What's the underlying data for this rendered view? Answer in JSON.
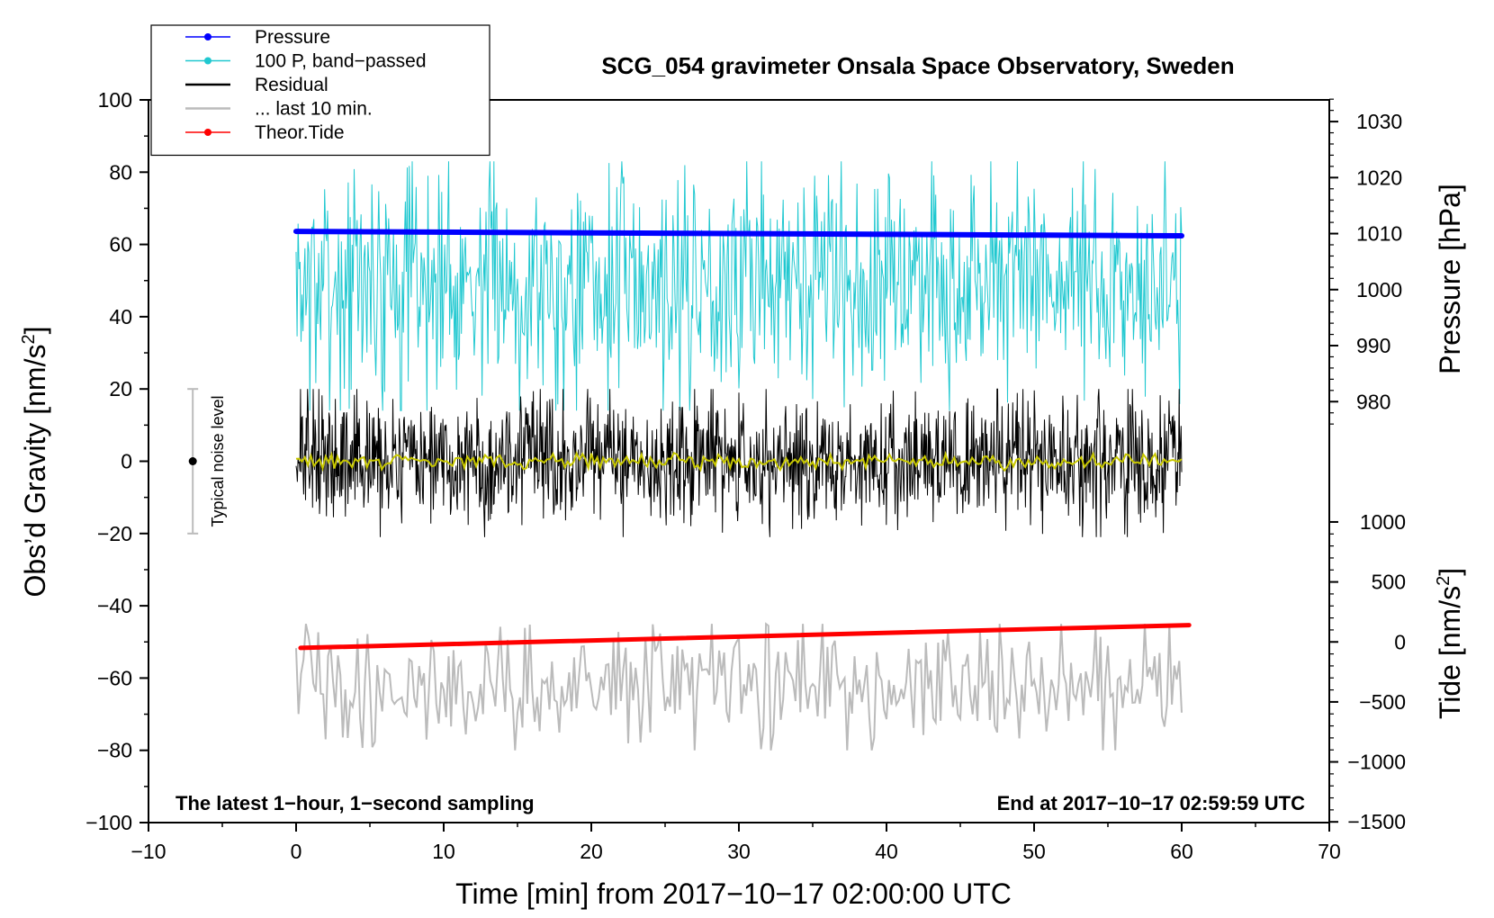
{
  "chart_data": {
    "type": "line",
    "title": "SCG_054 gravimeter Onsala Space Observatory, Sweden",
    "xlabel": "Time [min] from 2017−10−17 02:00:00 UTC",
    "ylabel": "Obs’d Gravity [nm/s",
    "ylabel_sup": "2",
    "ylabel_close": "]",
    "xlim": [
      -10,
      70
    ],
    "ylim": [
      -100,
      100
    ],
    "x_ticks": [
      -10,
      0,
      10,
      20,
      30,
      40,
      50,
      60,
      70
    ],
    "x_tick_labels": [
      "−10",
      "0",
      "10",
      "20",
      "30",
      "40",
      "50",
      "60",
      "70"
    ],
    "y_ticks": [
      -100,
      -80,
      -60,
      -40,
      -20,
      0,
      20,
      40,
      60,
      80,
      100
    ],
    "y_tick_labels": [
      "−100",
      "−80",
      "−60",
      "−40",
      "−20",
      "0",
      "20",
      "40",
      "60",
      "80",
      "100"
    ],
    "pressure_axis": {
      "label": "Pressure [hPa]",
      "ticks": [
        980,
        990,
        1000,
        1010,
        1020,
        1030
      ],
      "tick_labels": [
        "980",
        "990",
        "1000",
        "1010",
        "1020",
        "1030"
      ],
      "mapping_note": "1010 hPa at 63 nm/s^2, 10 hPa per 15.5 nm/s^2"
    },
    "tide_axis": {
      "label": "Tide [nm/s",
      "label_sup": "2",
      "label_close": "]",
      "ticks": [
        -1500,
        -1000,
        -500,
        0,
        500,
        1000
      ],
      "tick_labels": [
        "−1500",
        "−1000",
        "−500",
        "0",
        "500",
        "1000"
      ],
      "mapping_note": "0 nm/s^2 at -50, 500 nm/s^2 per 16.6 units"
    },
    "legend": {
      "location": "top-left",
      "entries": [
        {
          "label": "Pressure",
          "color": "#0000ff",
          "style": "line-dot"
        },
        {
          "label": "100 P, band−passed",
          "color": "#20c8d0",
          "style": "line-dot"
        },
        {
          "label": "Residual",
          "color": "#000000",
          "style": "line"
        },
        {
          "label": "... last 10 min.",
          "color": "#bbbbbb",
          "style": "line"
        },
        {
          "label": "Theor.Tide",
          "color": "#ff0000",
          "style": "line-dot"
        }
      ]
    },
    "series": [
      {
        "name": "Pressure",
        "color": "#0000ff",
        "axis": "pressure",
        "x_range": [
          0,
          60
        ],
        "start_value": 1010.4,
        "end_value": 1009.6,
        "unit": "hPa"
      },
      {
        "name": "100 P, band−passed",
        "color": "#20c8d0",
        "axis": "gravity",
        "x_range": [
          0,
          60
        ],
        "center": 50,
        "spread": 15,
        "min": 14,
        "max": 83
      },
      {
        "name": "Residual",
        "color": "#000000",
        "axis": "gravity",
        "x_range": [
          0,
          60
        ],
        "center": 0,
        "spread": 8,
        "min": -21,
        "max": 20
      },
      {
        "name": "Residual (smoothed)",
        "color": "#c8c800",
        "axis": "gravity",
        "x_range": [
          0,
          60
        ],
        "center": 0,
        "spread": 1
      },
      {
        "name": "... last 10 min.",
        "color": "#bbbbbb",
        "axis": "gravity",
        "x_range": [
          0,
          60
        ],
        "center": -62,
        "spread": 8,
        "min": -80,
        "max": -45
      },
      {
        "name": "Theor.Tide",
        "color": "#ff0000",
        "axis": "tide",
        "x_range": [
          0.3,
          60.5
        ],
        "start_value": -50,
        "end_value": 140,
        "unit": "nm/s^2"
      }
    ],
    "noise_bar": {
      "label": "Typical noise level",
      "x": -7,
      "center": 0,
      "low": -20,
      "high": 20
    },
    "annotations": [
      {
        "text": "The latest 1−hour, 1−second sampling",
        "position": "bottom-left"
      },
      {
        "text": "End at 2017−10−17 02:59:59 UTC",
        "position": "bottom-right"
      }
    ]
  }
}
